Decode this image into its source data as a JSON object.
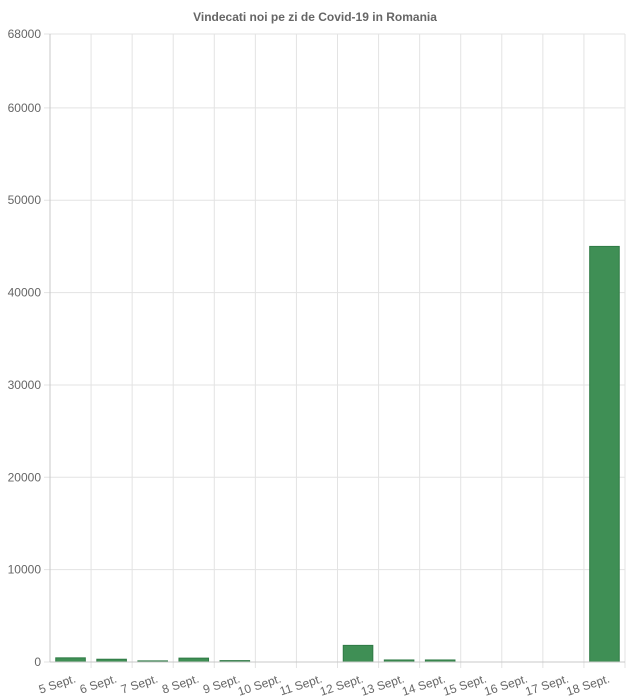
{
  "chart_data": {
    "type": "bar",
    "title": "Vindecati noi pe zi de Covid-19 in Romania",
    "xlabel": "",
    "ylabel": "",
    "categories": [
      "5 Sept.",
      "6 Sept.",
      "7 Sept.",
      "8 Sept.",
      "9 Sept.",
      "10 Sept.",
      "11 Sept.",
      "12 Sept.",
      "13 Sept.",
      "14 Sept.",
      "15 Sept.",
      "16 Sept.",
      "17 Sept.",
      "18 Sept."
    ],
    "values": [
      450,
      300,
      120,
      420,
      150,
      0,
      0,
      1800,
      220,
      220,
      0,
      0,
      0,
      45000
    ],
    "ylim": [
      0,
      68000
    ],
    "yticks": [
      0,
      10000,
      20000,
      30000,
      40000,
      50000,
      60000,
      68000
    ],
    "grid": true,
    "legend": "none",
    "colors": {
      "bar_fill": "#3f8f55",
      "bar_stroke": "#2f7a45"
    }
  }
}
